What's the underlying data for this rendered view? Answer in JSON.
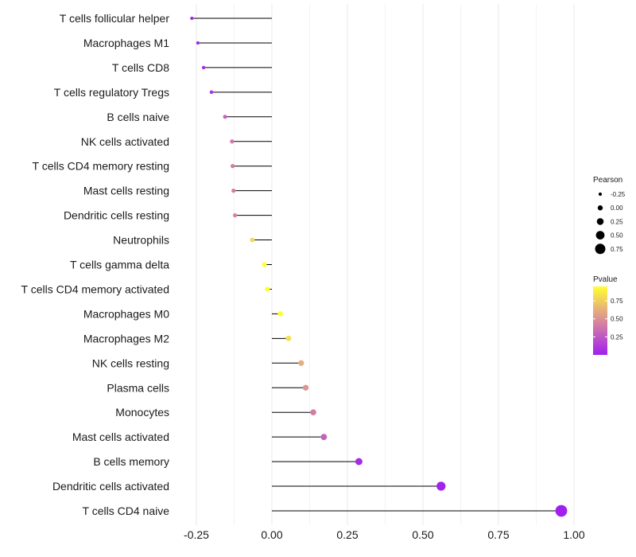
{
  "chart_data": {
    "type": "lollipop",
    "x_axis": {
      "ticks": [
        -0.25,
        0,
        0.25,
        0.5,
        0.75,
        1
      ],
      "tick_labels": [
        "-0.25",
        "0.00",
        "0.25",
        "0.50",
        "0.75",
        "1.00"
      ],
      "xlim": [
        -0.26,
        0.96
      ],
      "grid": true
    },
    "categories": [
      "T cells follicular helper",
      "Macrophages M1",
      "T cells CD8",
      "T cells regulatory  Tregs",
      "B cells naive",
      "NK cells activated",
      "T cells CD4 memory resting",
      "Mast cells resting",
      "Dendritic cells resting",
      "Neutrophils",
      "T cells gamma delta",
      "T cells CD4 memory activated",
      "Macrophages M0",
      "Macrophages M2",
      "NK cells resting",
      "Plasma cells",
      "Monocytes",
      "Mast cells activated",
      "B cells memory",
      "Dendritic cells activated",
      "T cells CD4 naive"
    ],
    "pearson": [
      -0.265,
      -0.245,
      -0.226,
      -0.2,
      -0.155,
      -0.132,
      -0.13,
      -0.127,
      -0.122,
      -0.065,
      -0.025,
      -0.015,
      0.028,
      0.055,
      0.097,
      0.112,
      0.137,
      0.172,
      0.288,
      0.56,
      0.958
    ],
    "pvalue": [
      0.0,
      0.02,
      0.05,
      0.1,
      0.3,
      0.4,
      0.41,
      0.42,
      0.45,
      0.8,
      0.97,
      0.99,
      0.99,
      0.82,
      0.62,
      0.52,
      0.42,
      0.3,
      0.05,
      0.02,
      0.0
    ],
    "legend_size": {
      "title": "Pearson",
      "values": [
        -0.25,
        0,
        0.25,
        0.5,
        0.75
      ],
      "labels": [
        "-0.25",
        "0.00",
        "0.25",
        "0.50",
        "0.75"
      ]
    },
    "legend_color": {
      "title": "Pvalue",
      "ticks": [
        0.25,
        0.5,
        0.75
      ],
      "labels": [
        "0.25",
        "0.50",
        "0.75"
      ],
      "range": [
        0,
        0.95
      ],
      "low_color": "#a020f0",
      "mid_color": "#d98a9a",
      "high_color": "#ffff33"
    },
    "colors": {
      "stem": "#000000",
      "grid": "#ebebeb"
    }
  }
}
